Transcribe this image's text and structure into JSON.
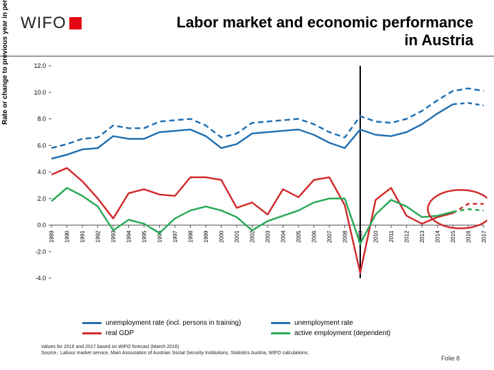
{
  "logo_text": "WIFO",
  "title_l1": "Labor market and economic performance",
  "title_l2": "in Austria",
  "y_axis_label": "Rate or change to previous year in percent",
  "years": [
    1989,
    1990,
    1991,
    1992,
    1993,
    1994,
    1995,
    1996,
    1997,
    1998,
    1999,
    2000,
    2001,
    2002,
    2003,
    2004,
    2005,
    2006,
    2007,
    2008,
    2009,
    2010,
    2011,
    2012,
    2013,
    2014,
    2015,
    2016,
    2017
  ],
  "ylim": [
    -4.0,
    12.0
  ],
  "ytick_step": 2.0,
  "yticks": [
    "12.0",
    "10.0",
    "8.0",
    "6.0",
    "4.0",
    "2.0",
    "0.0",
    "-2.0",
    "-4.0"
  ],
  "series": {
    "unemp_training": {
      "label": "unemployment rate (incl. persons in training)",
      "color": "#1f6fb2",
      "dash": "none",
      "width": 2.5,
      "values": [
        5.0,
        5.3,
        5.7,
        5.8,
        6.7,
        6.5,
        6.5,
        7.0,
        7.1,
        7.2,
        6.7,
        5.8,
        6.1,
        6.9,
        7.0,
        7.1,
        7.2,
        6.8,
        6.2,
        5.8,
        7.2,
        6.8,
        6.7,
        7.0,
        7.6,
        8.4,
        9.1,
        9.2,
        9.0
      ]
    },
    "unemp_rate": {
      "label": "unemployment rate",
      "color": "#1f6fb2",
      "dash": "8 5",
      "width": 2.5,
      "values": [
        5.8,
        6.1,
        6.5,
        6.6,
        7.5,
        7.3,
        7.3,
        7.8,
        7.9,
        8.0,
        7.5,
        6.6,
        6.9,
        7.7,
        7.8,
        7.9,
        8.0,
        7.6,
        7.0,
        6.6,
        8.2,
        7.8,
        7.7,
        8.0,
        8.6,
        9.4,
        10.1,
        10.3,
        10.1
      ]
    },
    "real_gdp": {
      "label": "real GDP",
      "color": "#d22a2a",
      "dash": "none",
      "width": 2.5,
      "values": [
        3.8,
        4.3,
        3.3,
        2.0,
        0.5,
        2.4,
        2.7,
        2.3,
        2.2,
        3.6,
        3.6,
        3.4,
        1.3,
        1.7,
        0.8,
        2.7,
        2.1,
        3.4,
        3.6,
        1.5,
        -3.6,
        1.9,
        2.8,
        0.7,
        0.1,
        0.6,
        0.9,
        1.6,
        1.6
      ]
    },
    "active_emp": {
      "label": "active employment (dependent)",
      "color": "#2aa859",
      "dash": "none",
      "width": 2.5,
      "values": [
        1.8,
        2.8,
        2.2,
        1.4,
        -0.4,
        0.4,
        0.1,
        -0.6,
        0.5,
        1.1,
        1.4,
        1.1,
        0.6,
        -0.4,
        0.3,
        0.7,
        1.1,
        1.7,
        2.0,
        2.0,
        -1.4,
        0.8,
        1.9,
        1.4,
        0.6,
        0.7,
        1.0,
        1.2,
        1.1
      ]
    }
  },
  "vline_year": 2009,
  "circle_years": [
    2014,
    2017
  ],
  "circle_color": "#d22a2a",
  "bg_color": "#ffffff",
  "tick_color": "#555555",
  "axis_color": "#555555",
  "footnote_l1": "Values for 2016 and 2017 based on WIFO forecast (March 2016)",
  "footnote_l2": "Source.: Labour market service, Main Association of Austrian Social Security Institutions, Statistics Austria, WIFO calculations.",
  "slide_label": "Folie 8",
  "tick_fontsize": 9,
  "title_fontsize": 22,
  "label_fontsize": 10
}
